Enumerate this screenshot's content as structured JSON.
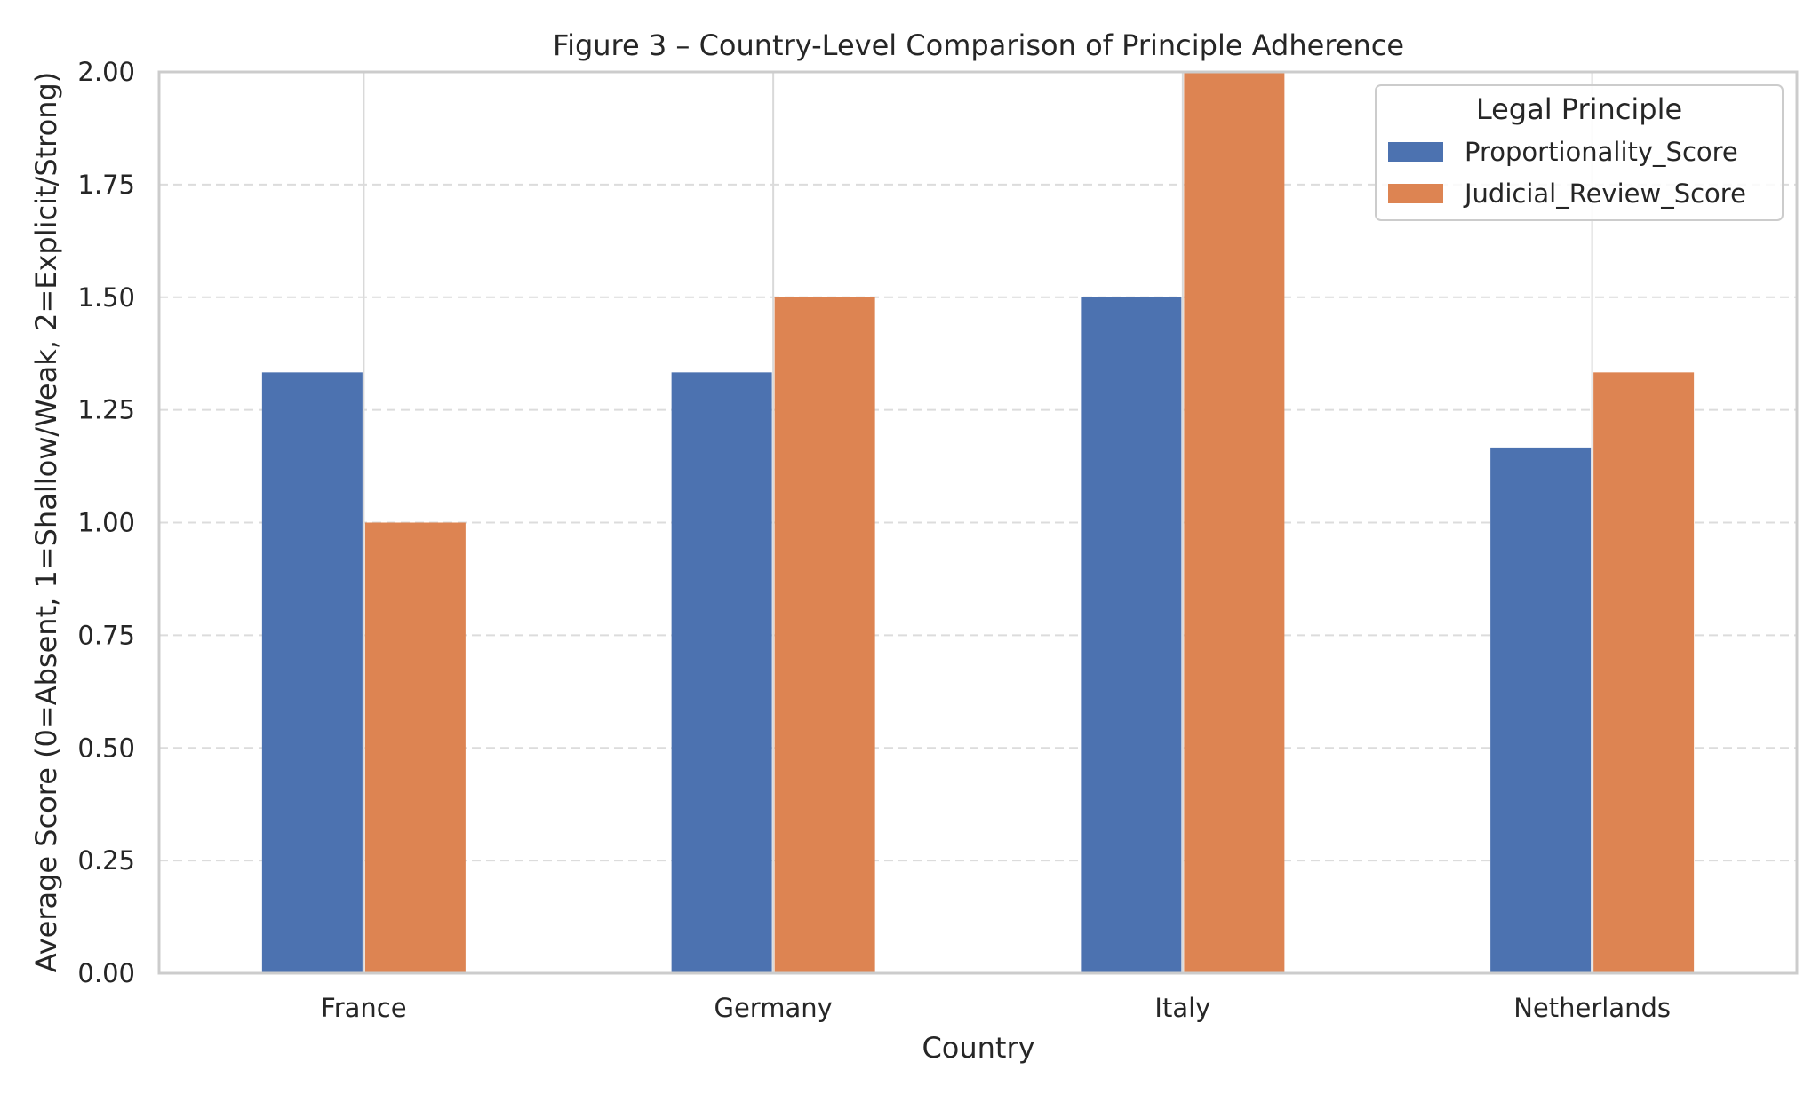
{
  "chart_data": {
    "type": "bar",
    "title": "Figure 3 – Country-Level Comparison of Principle Adherence",
    "xlabel": "Country",
    "ylabel": "Average Score (0=Absent, 1=Shallow/Weak, 2=Explicit/Strong)",
    "categories": [
      "France",
      "Germany",
      "Italy",
      "Netherlands"
    ],
    "series": [
      {
        "name": "Proportionality_Score",
        "values": [
          1.3333,
          1.3333,
          1.5,
          1.1667
        ],
        "color": "#4c72b0"
      },
      {
        "name": "Judicial_Review_Score",
        "values": [
          1.0,
          1.5,
          2.0,
          1.3333
        ],
        "color": "#dd8452"
      }
    ],
    "ylim": [
      0,
      2
    ],
    "yticks": [
      "0.00",
      "0.25",
      "0.50",
      "0.75",
      "1.00",
      "1.25",
      "1.50",
      "1.75",
      "2.00"
    ],
    "ytick_values": [
      0,
      0.25,
      0.5,
      0.75,
      1.0,
      1.25,
      1.5,
      1.75,
      2.0
    ],
    "grid": {
      "y": "dashed",
      "x": "solid"
    },
    "legend": {
      "title": "Legal Principle",
      "position": "top-right"
    }
  }
}
